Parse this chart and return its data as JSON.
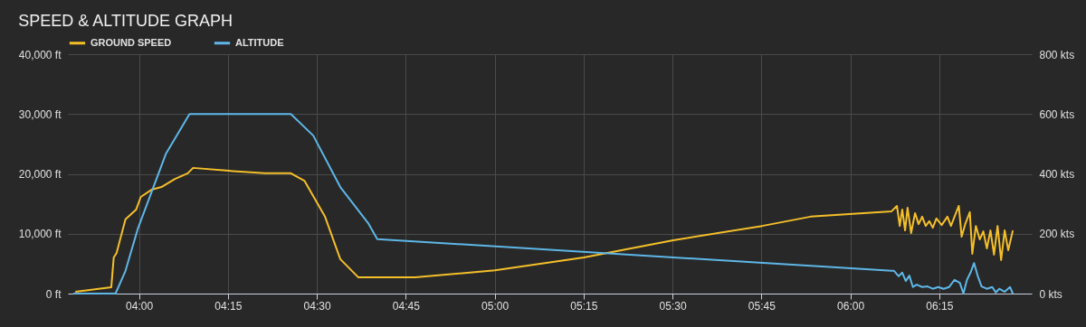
{
  "chart_data": {
    "type": "line",
    "title": "SPEED & ALTITUDE GRAPH",
    "xlim": [
      3.8,
      6.51
    ],
    "xticks": [
      {
        "value": 4,
        "label": "04:00"
      },
      {
        "value": 4.25,
        "label": "04:15"
      },
      {
        "value": 4.5,
        "label": "04:30"
      },
      {
        "value": 4.75,
        "label": "04:45"
      },
      {
        "value": 5,
        "label": "05:00"
      },
      {
        "value": 5.25,
        "label": "05:15"
      },
      {
        "value": 5.5,
        "label": "05:30"
      },
      {
        "value": 5.75,
        "label": "05:45"
      },
      {
        "value": 6,
        "label": "06:00"
      },
      {
        "value": 6.25,
        "label": "06:15"
      }
    ],
    "ylim": [
      0,
      40000
    ],
    "yticks": [
      {
        "value": 0,
        "label": "0 ft"
      },
      {
        "value": 10000,
        "label": "10,000 ft"
      },
      {
        "value": 20000,
        "label": "20,000 ft"
      },
      {
        "value": 30000,
        "label": "30,000 ft"
      },
      {
        "value": 40000,
        "label": "40,000 ft"
      }
    ],
    "y2lim": [
      0,
      800
    ],
    "y2ticks": [
      {
        "value": 0,
        "label": "0 kts"
      },
      {
        "value": 200,
        "label": "200 kts"
      },
      {
        "value": 400,
        "label": "400 kts"
      },
      {
        "value": 600,
        "label": "600 kts"
      },
      {
        "value": 800,
        "label": "800 kts"
      }
    ],
    "grid": true,
    "legend": "top",
    "series": [
      {
        "name": "GROUND SPEED",
        "color": "#f5bf2a",
        "axis": "y2",
        "x": [
          3.821,
          3.922,
          3.929,
          3.937,
          3.949,
          3.962,
          3.992,
          4.005,
          4.035,
          4.063,
          4.101,
          4.137,
          4.152,
          4.245,
          4.354,
          4.427,
          4.465,
          4.523,
          4.566,
          4.617,
          4.776,
          5.001,
          5.251,
          5.502,
          5.752,
          5.888,
          6.116,
          6.131,
          6.139,
          6.146,
          6.154,
          6.161,
          6.171,
          6.182,
          6.192,
          6.202,
          6.212,
          6.222,
          6.232,
          6.242,
          6.257,
          6.273,
          6.283,
          6.293,
          6.305,
          6.313,
          6.323,
          6.336,
          6.343,
          6.353,
          6.364,
          6.374,
          6.384,
          6.394,
          6.404,
          6.414,
          6.424,
          6.434,
          6.444,
          6.457
        ],
        "values": [
          6,
          21,
          121,
          136,
          190,
          248,
          281,
          323,
          347,
          356,
          383,
          402,
          420,
          411,
          402,
          402,
          377,
          257,
          115,
          54,
          54,
          78,
          121,
          178,
          226,
          257,
          275,
          293,
          226,
          281,
          211,
          287,
          202,
          269,
          232,
          257,
          226,
          242,
          220,
          251,
          229,
          257,
          226,
          257,
          293,
          190,
          232,
          272,
          133,
          226,
          181,
          208,
          151,
          211,
          130,
          226,
          112,
          211,
          145,
          211
        ]
      },
      {
        "name": "ALTITUDE",
        "color": "#5eb7e8",
        "x": [
          3.815,
          3.934,
          3.962,
          3.997,
          4.076,
          4.142,
          4.427,
          4.49,
          4.566,
          4.644,
          4.67,
          6.116,
          6.123,
          6.136,
          6.146,
          6.156,
          6.166,
          6.176,
          6.187,
          6.202,
          6.217,
          6.232,
          6.247,
          6.262,
          6.278,
          6.293,
          6.308,
          6.318,
          6.328,
          6.338,
          6.348,
          6.358,
          6.369,
          6.384,
          6.399,
          6.409,
          6.419,
          6.434,
          6.449,
          6.457
        ],
        "values": [
          0,
          0,
          3800,
          10900,
          23400,
          30000,
          30000,
          26400,
          17800,
          11800,
          9100,
          3800,
          3800,
          2900,
          3500,
          2100,
          3000,
          1100,
          1500,
          1100,
          1200,
          800,
          1100,
          800,
          1100,
          2300,
          1800,
          0,
          2300,
          3500,
          5100,
          3000,
          1200,
          800,
          1100,
          200,
          800,
          300,
          1100,
          0
        ]
      }
    ]
  }
}
